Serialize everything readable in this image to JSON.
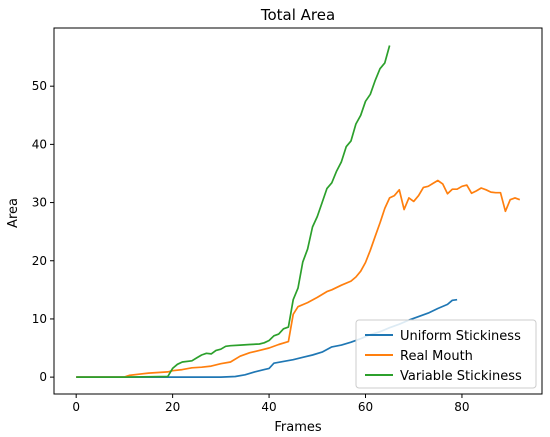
{
  "chart_data": {
    "type": "line",
    "title": "Total Area",
    "xlabel": "Frames",
    "ylabel": "Area",
    "xlim": [
      -4.6,
      96.6
    ],
    "ylim": [
      -2.9,
      60
    ],
    "xticks": [
      0,
      20,
      40,
      60,
      80
    ],
    "yticks": [
      0,
      10,
      20,
      30,
      40,
      50
    ],
    "grid": false,
    "legend_position": "lower right",
    "series": [
      {
        "name": "Uniform Stickiness",
        "color": "#1f77b4",
        "points": [
          [
            0,
            0
          ],
          [
            10,
            0
          ],
          [
            20,
            0
          ],
          [
            30,
            0
          ],
          [
            33,
            0.1
          ],
          [
            35,
            0.4
          ],
          [
            37,
            0.9
          ],
          [
            39,
            1.3
          ],
          [
            40,
            1.5
          ],
          [
            41,
            2.4
          ],
          [
            43,
            2.7
          ],
          [
            45,
            3.0
          ],
          [
            47,
            3.4
          ],
          [
            49,
            3.8
          ],
          [
            51,
            4.3
          ],
          [
            53,
            5.2
          ],
          [
            55,
            5.5
          ],
          [
            57,
            6.0
          ],
          [
            59,
            6.6
          ],
          [
            61,
            7.3
          ],
          [
            63,
            7.8
          ],
          [
            65,
            8.5
          ],
          [
            67,
            9.1
          ],
          [
            69,
            9.8
          ],
          [
            71,
            10.4
          ],
          [
            73,
            11.0
          ],
          [
            75,
            11.8
          ],
          [
            77,
            12.5
          ],
          [
            78,
            13.2
          ],
          [
            79,
            13.3
          ]
        ]
      },
      {
        "name": "Real Mouth",
        "color": "#ff7f0e",
        "points": [
          [
            0,
            0
          ],
          [
            10,
            0
          ],
          [
            11,
            0.3
          ],
          [
            13,
            0.5
          ],
          [
            15,
            0.7
          ],
          [
            17,
            0.8
          ],
          [
            19,
            0.9
          ],
          [
            20,
            1.1
          ],
          [
            22,
            1.3
          ],
          [
            24,
            1.6
          ],
          [
            26,
            1.7
          ],
          [
            28,
            1.9
          ],
          [
            30,
            2.3
          ],
          [
            32,
            2.6
          ],
          [
            34,
            3.6
          ],
          [
            36,
            4.2
          ],
          [
            38,
            4.6
          ],
          [
            40,
            5.0
          ],
          [
            42,
            5.6
          ],
          [
            44,
            6.1
          ],
          [
            45,
            10.8
          ],
          [
            46,
            12.1
          ],
          [
            48,
            12.8
          ],
          [
            50,
            13.7
          ],
          [
            52,
            14.7
          ],
          [
            53,
            15.0
          ],
          [
            55,
            15.8
          ],
          [
            57,
            16.5
          ],
          [
            58,
            17.2
          ],
          [
            59,
            18.2
          ],
          [
            60,
            19.7
          ],
          [
            61,
            21.8
          ],
          [
            62,
            24.2
          ],
          [
            63,
            26.5
          ],
          [
            64,
            29.0
          ],
          [
            65,
            30.8
          ],
          [
            66,
            31.2
          ],
          [
            67,
            32.2
          ],
          [
            68,
            28.8
          ],
          [
            69,
            30.8
          ],
          [
            70,
            30.2
          ],
          [
            71,
            31.2
          ],
          [
            72,
            32.6
          ],
          [
            73,
            32.8
          ],
          [
            74,
            33.3
          ],
          [
            75,
            33.8
          ],
          [
            76,
            33.2
          ],
          [
            77,
            31.5
          ],
          [
            78,
            32.3
          ],
          [
            79,
            32.3
          ],
          [
            80,
            32.8
          ],
          [
            81,
            33.0
          ],
          [
            82,
            31.6
          ],
          [
            83,
            32.0
          ],
          [
            84,
            32.5
          ],
          [
            85,
            32.2
          ],
          [
            86,
            31.8
          ],
          [
            87,
            31.7
          ],
          [
            88,
            31.7
          ],
          [
            89,
            28.5
          ],
          [
            90,
            30.5
          ],
          [
            91,
            30.8
          ],
          [
            92,
            30.5
          ]
        ]
      },
      {
        "name": "Variable Stickiness",
        "color": "#2ca02c",
        "points": [
          [
            0,
            0
          ],
          [
            10,
            0
          ],
          [
            19,
            0.1
          ],
          [
            20,
            1.5
          ],
          [
            21,
            2.2
          ],
          [
            22,
            2.6
          ],
          [
            24,
            2.8
          ],
          [
            25,
            3.3
          ],
          [
            26,
            3.8
          ],
          [
            27,
            4.1
          ],
          [
            28,
            4.0
          ],
          [
            29,
            4.6
          ],
          [
            30,
            4.8
          ],
          [
            31,
            5.3
          ],
          [
            32,
            5.4
          ],
          [
            34,
            5.5
          ],
          [
            36,
            5.6
          ],
          [
            38,
            5.7
          ],
          [
            39,
            5.9
          ],
          [
            40,
            6.3
          ],
          [
            41,
            7.1
          ],
          [
            42,
            7.4
          ],
          [
            43,
            8.3
          ],
          [
            44,
            8.6
          ],
          [
            45,
            13.3
          ],
          [
            46,
            15.3
          ],
          [
            47,
            19.8
          ],
          [
            48,
            22.0
          ],
          [
            49,
            25.8
          ],
          [
            50,
            27.6
          ],
          [
            51,
            30.0
          ],
          [
            52,
            32.4
          ],
          [
            53,
            33.4
          ],
          [
            54,
            35.4
          ],
          [
            55,
            37.0
          ],
          [
            56,
            39.6
          ],
          [
            57,
            40.6
          ],
          [
            58,
            43.5
          ],
          [
            59,
            45.0
          ],
          [
            60,
            47.4
          ],
          [
            61,
            48.6
          ],
          [
            62,
            51.0
          ],
          [
            63,
            53.0
          ],
          [
            64,
            54.0
          ],
          [
            65,
            57.0
          ]
        ]
      }
    ]
  }
}
